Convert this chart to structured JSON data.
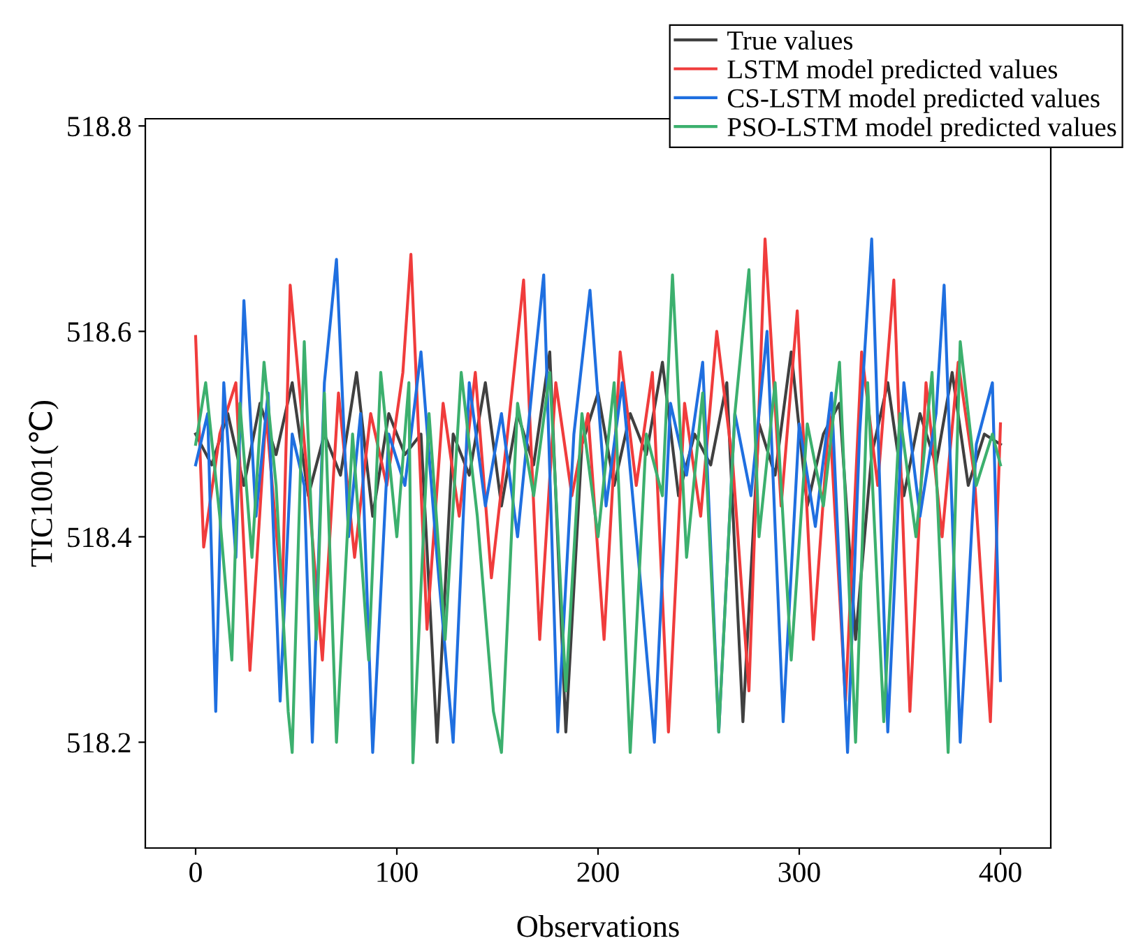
{
  "chart_data": {
    "type": "line",
    "xlabel": "Observations",
    "ylabel": "TIC1001(℃)",
    "xlim": [
      -25,
      425
    ],
    "xticks": [
      0,
      100,
      200,
      300,
      400
    ],
    "ylim": [
      518.097,
      518.807
    ],
    "yticks": [
      {
        "value": 518.2,
        "label": "518.2"
      },
      {
        "value": 518.4,
        "label": "518.4"
      },
      {
        "value": 518.6,
        "label": "518.6"
      },
      {
        "value": 518.8,
        "label": "518.8"
      }
    ],
    "grid": false,
    "legend": "top right",
    "marker": "none",
    "line_style": "solid",
    "series": [
      {
        "name": "True values",
        "color": "#404040",
        "x": [
          0,
          8,
          16,
          24,
          32,
          40,
          48,
          56,
          64,
          72,
          80,
          88,
          96,
          104,
          112,
          120,
          128,
          136,
          144,
          152,
          160,
          168,
          176,
          184,
          192,
          200,
          208,
          216,
          224,
          232,
          240,
          248,
          256,
          264,
          272,
          280,
          288,
          296,
          304,
          312,
          320,
          328,
          336,
          344,
          352,
          360,
          368,
          376,
          384,
          392,
          400
        ],
        "values": [
          518.5,
          518.47,
          518.52,
          518.45,
          518.53,
          518.48,
          518.55,
          518.44,
          518.5,
          518.46,
          518.56,
          518.42,
          518.52,
          518.48,
          518.5,
          518.2,
          518.5,
          518.46,
          518.55,
          518.43,
          518.52,
          518.47,
          518.58,
          518.21,
          518.49,
          518.54,
          518.45,
          518.52,
          518.48,
          518.57,
          518.44,
          518.5,
          518.47,
          518.55,
          518.22,
          518.51,
          518.46,
          518.58,
          518.43,
          518.5,
          518.53,
          518.3,
          518.48,
          518.55,
          518.44,
          518.52,
          518.47,
          518.56,
          518.45,
          518.5,
          518.49
        ]
      },
      {
        "name": "LSTM model predicted values",
        "color": "#f03c3c",
        "x": [
          0,
          4,
          12,
          20,
          27,
          35,
          43,
          47,
          55,
          63,
          71,
          79,
          87,
          95,
          103,
          107,
          115,
          123,
          131,
          139,
          147,
          155,
          163,
          171,
          179,
          187,
          195,
          203,
          211,
          219,
          227,
          235,
          243,
          251,
          259,
          267,
          275,
          283,
          291,
          299,
          307,
          315,
          323,
          331,
          339,
          347,
          355,
          363,
          371,
          379,
          387,
          395,
          400
        ],
        "values": [
          518.595,
          518.39,
          518.5,
          518.55,
          518.27,
          518.52,
          518.34,
          518.645,
          518.47,
          518.28,
          518.54,
          518.38,
          518.52,
          518.45,
          518.56,
          518.675,
          518.31,
          518.53,
          518.42,
          518.56,
          518.36,
          518.5,
          518.65,
          518.3,
          518.55,
          518.44,
          518.52,
          518.3,
          518.58,
          518.45,
          518.56,
          518.21,
          518.53,
          518.42,
          518.6,
          518.47,
          518.25,
          518.69,
          518.43,
          518.62,
          518.3,
          518.52,
          518.24,
          518.58,
          518.45,
          518.65,
          518.23,
          518.55,
          518.4,
          518.57,
          518.46,
          518.22,
          518.51
        ]
      },
      {
        "name": "CS-LSTM model predicted values",
        "color": "#1f6fe0",
        "x": [
          0,
          6,
          10,
          14,
          20,
          24,
          30,
          36,
          42,
          48,
          54,
          58,
          64,
          70,
          76,
          82,
          88,
          96,
          104,
          112,
          120,
          128,
          136,
          144,
          152,
          160,
          168,
          173,
          180,
          188,
          196,
          204,
          212,
          220,
          228,
          236,
          244,
          252,
          260,
          268,
          276,
          284,
          292,
          300,
          308,
          316,
          324,
          330,
          336,
          344,
          352,
          360,
          368,
          372,
          380,
          388,
          396,
          400
        ],
        "values": [
          518.47,
          518.52,
          518.23,
          518.55,
          518.38,
          518.63,
          518.42,
          518.54,
          518.24,
          518.5,
          518.45,
          518.2,
          518.55,
          518.67,
          518.4,
          518.52,
          518.19,
          518.5,
          518.45,
          518.58,
          518.38,
          518.2,
          518.55,
          518.43,
          518.52,
          518.4,
          518.56,
          518.655,
          518.21,
          518.5,
          518.64,
          518.43,
          518.55,
          518.38,
          518.2,
          518.53,
          518.46,
          518.57,
          518.21,
          518.52,
          518.44,
          518.6,
          518.22,
          518.51,
          518.41,
          518.54,
          518.19,
          518.5,
          518.69,
          518.21,
          518.55,
          518.42,
          518.52,
          518.645,
          518.2,
          518.49,
          518.55,
          518.26
        ]
      },
      {
        "name": "PSO-LSTM model predicted values",
        "color": "#3cb06e",
        "x": [
          0,
          5,
          12,
          18,
          22,
          28,
          34,
          40,
          46,
          48,
          54,
          60,
          64,
          70,
          78,
          86,
          92,
          100,
          106,
          108,
          116,
          124,
          132,
          140,
          148,
          152,
          160,
          168,
          176,
          184,
          192,
          200,
          208,
          216,
          224,
          232,
          237,
          244,
          252,
          260,
          268,
          275,
          280,
          288,
          296,
          304,
          312,
          320,
          328,
          334,
          342,
          350,
          358,
          366,
          374,
          380,
          388,
          396,
          400
        ],
        "values": [
          518.49,
          518.55,
          518.42,
          518.28,
          518.53,
          518.38,
          518.57,
          518.45,
          518.23,
          518.19,
          518.59,
          518.3,
          518.54,
          518.2,
          518.5,
          518.28,
          518.56,
          518.4,
          518.55,
          518.18,
          518.52,
          518.3,
          518.56,
          518.42,
          518.23,
          518.19,
          518.53,
          518.44,
          518.56,
          518.25,
          518.52,
          518.4,
          518.55,
          518.19,
          518.5,
          518.44,
          518.655,
          518.38,
          518.54,
          518.21,
          518.52,
          518.66,
          518.4,
          518.55,
          518.28,
          518.51,
          518.43,
          518.57,
          518.2,
          518.55,
          518.22,
          518.52,
          518.4,
          518.56,
          518.19,
          518.59,
          518.45,
          518.5,
          518.47
        ]
      }
    ]
  }
}
